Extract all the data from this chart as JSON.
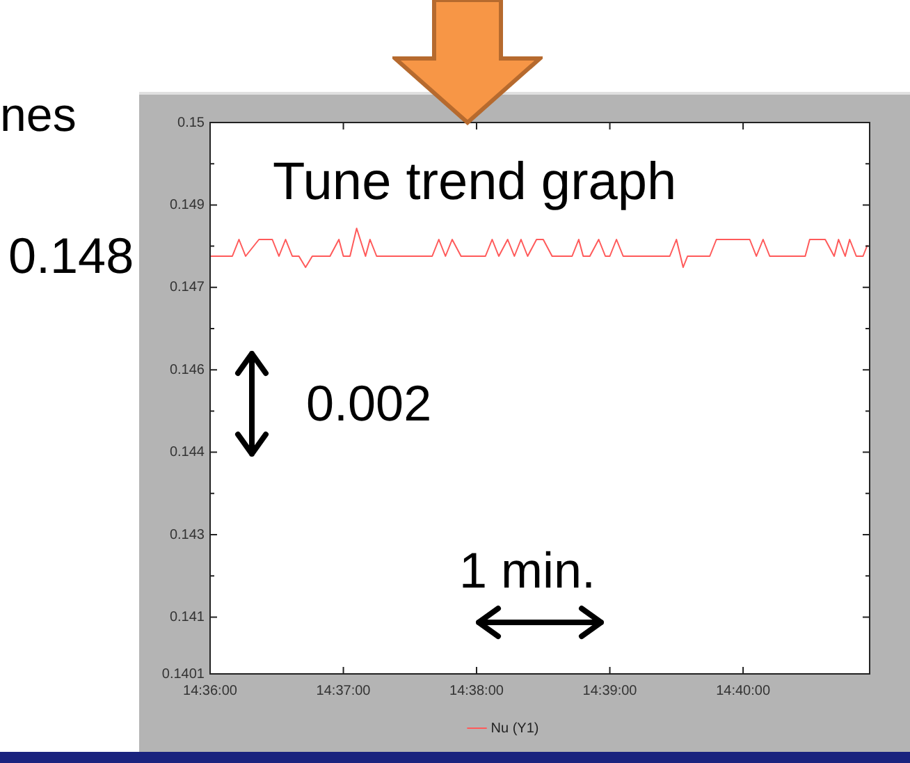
{
  "chart_data": {
    "type": "line",
    "x": [
      14.6,
      14.60278,
      14.60361,
      14.60444,
      14.60611,
      14.60778,
      14.60861,
      14.60944,
      14.61028,
      14.61111,
      14.61194,
      14.61278,
      14.615,
      14.61611,
      14.61667,
      14.6175,
      14.61833,
      14.61944,
      14.62,
      14.62083,
      14.62194,
      14.62778,
      14.62861,
      14.62944,
      14.63028,
      14.63139,
      14.63444,
      14.63528,
      14.63611,
      14.63722,
      14.63806,
      14.63889,
      14.63972,
      14.64083,
      14.64167,
      14.64278,
      14.64528,
      14.64611,
      14.64667,
      14.6475,
      14.64861,
      14.64944,
      14.65,
      14.65083,
      14.65167,
      14.6575,
      14.65833,
      14.65917,
      14.65972,
      14.6625,
      14.66333,
      14.6675,
      14.66833,
      14.66917,
      14.67,
      14.67444,
      14.675,
      14.67694,
      14.67806,
      14.67861,
      14.67944,
      14.68,
      14.68083,
      14.68167,
      14.68222
    ],
    "series": [
      {
        "name": "Nu (Y1)",
        "color": "#ff5a5a",
        "values": [
          0.1476,
          0.1476,
          0.1479,
          0.1476,
          0.1479,
          0.1479,
          0.1476,
          0.1479,
          0.1476,
          0.1476,
          0.1474,
          0.1476,
          0.1476,
          0.1479,
          0.1476,
          0.1476,
          0.1481,
          0.1476,
          0.1479,
          0.1476,
          0.1476,
          0.1476,
          0.1479,
          0.1476,
          0.1479,
          0.1476,
          0.1476,
          0.1479,
          0.1476,
          0.1479,
          0.1476,
          0.1479,
          0.1476,
          0.1479,
          0.1479,
          0.1476,
          0.1476,
          0.1479,
          0.1476,
          0.1476,
          0.1479,
          0.1476,
          0.1476,
          0.1479,
          0.1476,
          0.1476,
          0.1479,
          0.1474,
          0.1476,
          0.1476,
          0.1479,
          0.1479,
          0.1476,
          0.1479,
          0.1476,
          0.1476,
          0.1479,
          0.1479,
          0.1476,
          0.1479,
          0.1476,
          0.1479,
          0.1476,
          0.1476,
          0.1478
        ]
      }
    ],
    "xlim": [
      14.6,
      14.6825
    ],
    "xticks": [
      {
        "value": 14.6,
        "label": "14:36:00"
      },
      {
        "value": 14.61667,
        "label": "14:37:00"
      },
      {
        "value": 14.63333,
        "label": "14:38:00"
      },
      {
        "value": 14.65,
        "label": "14:39:00"
      },
      {
        "value": 14.66667,
        "label": "14:40:00"
      }
    ],
    "ylim": [
      0.1401,
      0.15
    ],
    "yticks": [
      {
        "value": 0.1401,
        "label": "0.1401"
      },
      {
        "value": 0.14112,
        "label": "0.141"
      },
      {
        "value": 0.14186,
        "label": null
      },
      {
        "value": 0.1426,
        "label": "0.143"
      },
      {
        "value": 0.14334,
        "label": null
      },
      {
        "value": 0.14408,
        "label": "0.144"
      },
      {
        "value": 0.14482,
        "label": null
      },
      {
        "value": 0.14556,
        "label": "0.146"
      },
      {
        "value": 0.1463,
        "label": null
      },
      {
        "value": 0.14704,
        "label": "0.147"
      },
      {
        "value": 0.14778,
        "label": null
      },
      {
        "value": 0.14852,
        "label": "0.149"
      },
      {
        "value": 0.14926,
        "label": null
      },
      {
        "value": 0.15,
        "label": "0.15"
      }
    ],
    "legend": "bottom",
    "annotations": [
      "Tune trend graph",
      "0.148",
      "0.002",
      "1 min.",
      "nes"
    ]
  }
}
